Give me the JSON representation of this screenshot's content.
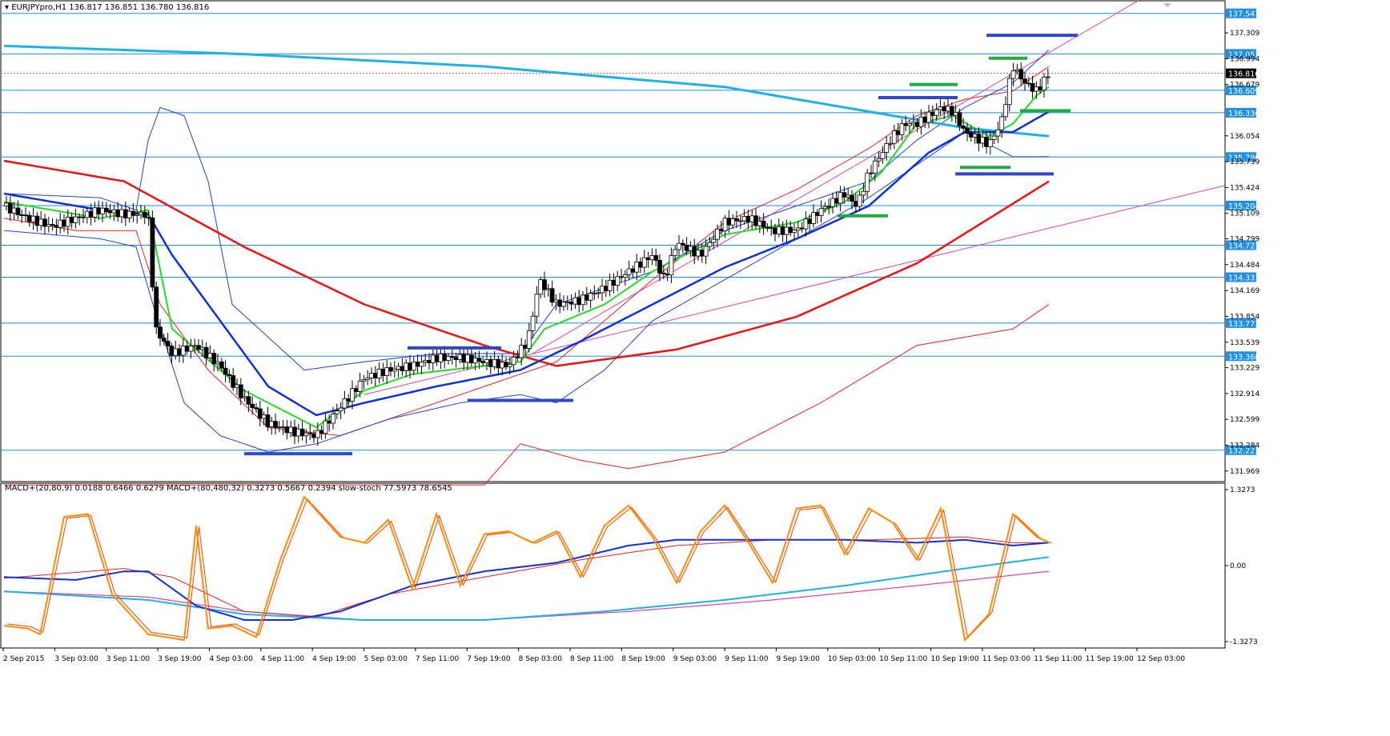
{
  "header": {
    "symbol_info": "EURJPYpro,H1  136.817 136.851 136.780 136.816",
    "indicator_info": "MACD+(20,80,9) 0.0188 0.6466 0.6279   MACD+(80,480,32) 0.3273 0.5667 0.2394   slow-stoch 77.5973 78.6545"
  },
  "chart_data": [
    {
      "type": "candlestick",
      "title": "EURJPYpro,H1",
      "ylim": [
        131.84,
        137.7
      ],
      "y_ticks": [
        "137.309",
        "136.994",
        "136.679",
        "136.054",
        "135.739",
        "135.424",
        "135.109",
        "134.799",
        "134.484",
        "134.169",
        "133.854",
        "133.539",
        "133.229",
        "132.914",
        "132.599",
        "132.284",
        "131.969"
      ],
      "y_tick_values": [
        137.309,
        136.994,
        136.679,
        136.054,
        135.739,
        135.424,
        135.109,
        134.799,
        134.484,
        134.169,
        133.854,
        133.539,
        133.229,
        132.914,
        132.599,
        132.284,
        131.969
      ],
      "price_levels": [
        137.547,
        137.053,
        136.609,
        136.336,
        135.796,
        135.204,
        134.721,
        134.331,
        133.772,
        133.368,
        132.223
      ],
      "current_price": "136.816",
      "current_price_value": 136.816,
      "close_path": [
        [
          0,
          135.2
        ],
        [
          10,
          135.05
        ],
        [
          20,
          134.95
        ],
        [
          30,
          135.05
        ],
        [
          40,
          135.15
        ],
        [
          50,
          135.1
        ],
        [
          60,
          135.1
        ],
        [
          63,
          133.7
        ],
        [
          70,
          133.4
        ],
        [
          80,
          133.5
        ],
        [
          90,
          133.25
        ],
        [
          100,
          132.85
        ],
        [
          110,
          132.55
        ],
        [
          120,
          132.45
        ],
        [
          130,
          132.4
        ],
        [
          140,
          132.75
        ],
        [
          150,
          133.1
        ],
        [
          160,
          133.2
        ],
        [
          170,
          133.25
        ],
        [
          180,
          133.35
        ],
        [
          190,
          133.35
        ],
        [
          200,
          133.3
        ],
        [
          210,
          133.25
        ],
        [
          218,
          133.55
        ],
        [
          223,
          134.3
        ],
        [
          230,
          134.0
        ],
        [
          240,
          134.05
        ],
        [
          250,
          134.2
        ],
        [
          260,
          134.4
        ],
        [
          270,
          134.6
        ],
        [
          275,
          134.3
        ],
        [
          280,
          134.75
        ],
        [
          290,
          134.6
        ],
        [
          300,
          135.0
        ],
        [
          310,
          135.05
        ],
        [
          320,
          134.9
        ],
        [
          330,
          134.9
        ],
        [
          340,
          135.15
        ],
        [
          350,
          135.35
        ],
        [
          355,
          135.2
        ],
        [
          360,
          135.6
        ],
        [
          370,
          136.05
        ],
        [
          375,
          136.2
        ],
        [
          380,
          136.2
        ],
        [
          390,
          136.4
        ],
        [
          395,
          136.35
        ],
        [
          400,
          136.1
        ],
        [
          410,
          135.95
        ],
        [
          415,
          136.2
        ],
        [
          420,
          136.9
        ],
        [
          425,
          136.7
        ],
        [
          430,
          136.6
        ],
        [
          435,
          136.816
        ]
      ],
      "ema_fast_green": [
        [
          0,
          135.25
        ],
        [
          40,
          135.05
        ],
        [
          60,
          135.15
        ],
        [
          70,
          133.7
        ],
        [
          80,
          133.45
        ],
        [
          100,
          132.95
        ],
        [
          130,
          132.5
        ],
        [
          150,
          132.95
        ],
        [
          170,
          133.15
        ],
        [
          200,
          133.25
        ],
        [
          215,
          133.3
        ],
        [
          225,
          133.7
        ],
        [
          250,
          134.0
        ],
        [
          270,
          134.4
        ],
        [
          300,
          134.85
        ],
        [
          330,
          135.0
        ],
        [
          350,
          135.25
        ],
        [
          365,
          135.6
        ],
        [
          380,
          136.2
        ],
        [
          395,
          136.3
        ],
        [
          410,
          136.05
        ],
        [
          420,
          136.2
        ],
        [
          430,
          136.55
        ],
        [
          435,
          136.65
        ]
      ],
      "ema_mid_blue": [
        [
          0,
          135.35
        ],
        [
          40,
          135.15
        ],
        [
          60,
          135.1
        ],
        [
          70,
          134.6
        ],
        [
          90,
          133.8
        ],
        [
          110,
          133.0
        ],
        [
          130,
          132.65
        ],
        [
          150,
          132.8
        ],
        [
          180,
          133.0
        ],
        [
          215,
          133.2
        ],
        [
          240,
          133.55
        ],
        [
          270,
          134.0
        ],
        [
          300,
          134.45
        ],
        [
          330,
          134.8
        ],
        [
          360,
          135.2
        ],
        [
          385,
          135.85
        ],
        [
          400,
          136.1
        ],
        [
          420,
          136.1
        ],
        [
          435,
          136.35
        ]
      ],
      "ma_slow_cyan": [
        [
          0,
          137.15
        ],
        [
          100,
          137.05
        ],
        [
          200,
          136.9
        ],
        [
          300,
          136.65
        ],
        [
          360,
          136.35
        ],
        [
          400,
          136.15
        ],
        [
          435,
          136.05
        ]
      ],
      "ma_slow_red": [
        [
          0,
          135.75
        ],
        [
          50,
          135.5
        ],
        [
          100,
          134.7
        ],
        [
          150,
          134.0
        ],
        [
          200,
          133.5
        ],
        [
          230,
          133.25
        ],
        [
          280,
          133.45
        ],
        [
          330,
          133.85
        ],
        [
          380,
          134.5
        ],
        [
          435,
          135.5
        ]
      ],
      "bollinger_upper": [
        [
          0,
          135.35
        ],
        [
          40,
          135.3
        ],
        [
          55,
          135.15
        ],
        [
          60,
          136.0
        ],
        [
          65,
          136.4
        ],
        [
          75,
          136.3
        ],
        [
          85,
          135.5
        ],
        [
          95,
          134.0
        ],
        [
          110,
          133.6
        ],
        [
          125,
          133.2
        ],
        [
          150,
          133.3
        ],
        [
          180,
          133.4
        ],
        [
          215,
          133.4
        ],
        [
          230,
          134.0
        ],
        [
          270,
          134.4
        ],
        [
          300,
          134.9
        ],
        [
          330,
          135.2
        ],
        [
          360,
          135.5
        ],
        [
          380,
          136.0
        ],
        [
          400,
          136.4
        ],
        [
          420,
          136.7
        ],
        [
          435,
          137.1
        ]
      ],
      "bollinger_lower": [
        [
          0,
          134.9
        ],
        [
          40,
          134.8
        ],
        [
          55,
          134.7
        ],
        [
          62,
          134.0
        ],
        [
          75,
          132.8
        ],
        [
          90,
          132.4
        ],
        [
          110,
          132.2
        ],
        [
          130,
          132.3
        ],
        [
          160,
          132.6
        ],
        [
          190,
          132.8
        ],
        [
          215,
          132.9
        ],
        [
          230,
          132.8
        ],
        [
          250,
          133.2
        ],
        [
          270,
          133.8
        ],
        [
          300,
          134.3
        ],
        [
          330,
          134.8
        ],
        [
          360,
          135.3
        ],
        [
          380,
          135.7
        ],
        [
          400,
          136.1
        ],
        [
          420,
          135.8
        ],
        [
          435,
          135.8
        ]
      ],
      "envelope_upper_red": [
        [
          0,
          135.05
        ],
        [
          30,
          134.9
        ],
        [
          55,
          134.9
        ],
        [
          65,
          134.0
        ],
        [
          85,
          133.2
        ],
        [
          110,
          132.5
        ],
        [
          140,
          132.4
        ],
        [
          160,
          132.6
        ],
        [
          200,
          133.0
        ],
        [
          230,
          133.3
        ],
        [
          270,
          134.3
        ],
        [
          300,
          135.0
        ],
        [
          330,
          135.4
        ],
        [
          360,
          135.9
        ],
        [
          380,
          136.3
        ],
        [
          400,
          136.5
        ],
        [
          420,
          136.6
        ],
        [
          435,
          136.9
        ]
      ],
      "envelope_lower_red": [
        [
          0,
          131.8
        ],
        [
          100,
          131.8
        ],
        [
          200,
          131.8
        ],
        [
          215,
          132.3
        ],
        [
          240,
          132.1
        ],
        [
          260,
          132.0
        ],
        [
          300,
          132.2
        ],
        [
          340,
          132.8
        ],
        [
          380,
          133.5
        ],
        [
          420,
          133.7
        ],
        [
          435,
          134.0
        ]
      ]
    },
    {
      "type": "line",
      "title": "MACD+ / slow-stoch",
      "ylim": [
        -1.3273,
        1.3273
      ],
      "y_ticks": [
        "1.3273",
        "0.00",
        "-1.3273"
      ],
      "y_tick_values": [
        1.3273,
        0.0,
        -1.3273
      ],
      "x_tick_labels": [
        "2 Sep 2015",
        "3 Sep 03:00",
        "3 Sep 11:00",
        "3 Sep 19:00",
        "4 Sep 03:00",
        "4 Sep 11:00",
        "4 Sep 19:00",
        "5 Sep 03:00",
        "7 Sep 11:00",
        "7 Sep 19:00",
        "8 Sep 03:00",
        "8 Sep 11:00",
        "8 Sep 19:00",
        "9 Sep 03:00",
        "9 Sep 11:00",
        "9 Sep 19:00",
        "10 Sep 03:00",
        "10 Sep 11:00",
        "10 Sep 19:00",
        "11 Sep 03:00",
        "11 Sep 11:00",
        "11 Sep 19:00",
        "12 Sep 03:00"
      ],
      "stoch": [
        [
          0,
          -1.05
        ],
        [
          10,
          -1.1
        ],
        [
          15,
          -1.2
        ],
        [
          25,
          0.85
        ],
        [
          35,
          0.9
        ],
        [
          45,
          -0.5
        ],
        [
          60,
          -1.2
        ],
        [
          75,
          -1.3
        ],
        [
          80,
          0.7
        ],
        [
          85,
          -1.1
        ],
        [
          95,
          -1.05
        ],
        [
          105,
          -1.25
        ],
        [
          115,
          0.1
        ],
        [
          125,
          1.2
        ],
        [
          140,
          0.5
        ],
        [
          150,
          0.4
        ],
        [
          160,
          0.8
        ],
        [
          170,
          -0.4
        ],
        [
          180,
          0.9
        ],
        [
          190,
          -0.35
        ],
        [
          200,
          0.55
        ],
        [
          210,
          0.6
        ],
        [
          220,
          0.4
        ],
        [
          230,
          0.6
        ],
        [
          240,
          -0.2
        ],
        [
          250,
          0.7
        ],
        [
          260,
          1.05
        ],
        [
          270,
          0.5
        ],
        [
          280,
          -0.3
        ],
        [
          290,
          0.6
        ],
        [
          300,
          1.05
        ],
        [
          310,
          0.4
        ],
        [
          320,
          -0.3
        ],
        [
          330,
          1.0
        ],
        [
          340,
          1.05
        ],
        [
          350,
          0.2
        ],
        [
          360,
          1.0
        ],
        [
          370,
          0.75
        ],
        [
          380,
          0.1
        ],
        [
          390,
          1.0
        ],
        [
          400,
          -1.3
        ],
        [
          410,
          -0.85
        ],
        [
          420,
          0.9
        ],
        [
          430,
          0.5
        ],
        [
          435,
          0.4
        ]
      ],
      "macd_fast_blue": [
        [
          0,
          -0.2
        ],
        [
          30,
          -0.25
        ],
        [
          50,
          -0.1
        ],
        [
          60,
          -0.1
        ],
        [
          80,
          -0.7
        ],
        [
          100,
          -0.95
        ],
        [
          120,
          -0.95
        ],
        [
          140,
          -0.8
        ],
        [
          170,
          -0.35
        ],
        [
          200,
          -0.1
        ],
        [
          230,
          0.05
        ],
        [
          260,
          0.35
        ],
        [
          280,
          0.45
        ],
        [
          300,
          0.45
        ],
        [
          320,
          0.45
        ],
        [
          350,
          0.45
        ],
        [
          380,
          0.4
        ],
        [
          400,
          0.45
        ],
        [
          420,
          0.35
        ],
        [
          435,
          0.4
        ]
      ],
      "macd_fast_signal_red": [
        [
          0,
          -0.22
        ],
        [
          50,
          -0.05
        ],
        [
          70,
          -0.2
        ],
        [
          100,
          -0.8
        ],
        [
          130,
          -0.9
        ],
        [
          160,
          -0.5
        ],
        [
          200,
          -0.2
        ],
        [
          240,
          0.1
        ],
        [
          280,
          0.35
        ],
        [
          320,
          0.45
        ],
        [
          360,
          0.45
        ],
        [
          400,
          0.5
        ],
        [
          420,
          0.4
        ],
        [
          435,
          0.4
        ]
      ],
      "macd_slow_cyan": [
        [
          0,
          -0.45
        ],
        [
          60,
          -0.6
        ],
        [
          100,
          -0.85
        ],
        [
          150,
          -0.95
        ],
        [
          200,
          -0.95
        ],
        [
          250,
          -0.8
        ],
        [
          300,
          -0.6
        ],
        [
          350,
          -0.35
        ],
        [
          400,
          -0.05
        ],
        [
          435,
          0.15
        ]
      ],
      "macd_slow_signal_magenta": [
        [
          0,
          -0.45
        ],
        [
          60,
          -0.55
        ],
        [
          100,
          -0.8
        ],
        [
          150,
          -0.95
        ],
        [
          200,
          -0.95
        ],
        [
          260,
          -0.8
        ],
        [
          320,
          -0.6
        ],
        [
          380,
          -0.35
        ],
        [
          435,
          -0.1
        ]
      ]
    }
  ],
  "colors": {
    "level_line": "#1f8fe8",
    "level_label_bg": "#1f8fe8",
    "current_label_bg": "#000000",
    "candle_bull": "#ffffff",
    "candle_bear": "#000000",
    "ema_green": "#22dd22",
    "ema_blue": "#1030d8",
    "ma_cyan": "#1fb0e8",
    "ma_red": "#ee1111",
    "bb_blue": "#2040e0",
    "envelope_red": "#ee2020",
    "trend_magenta": "#e8409c",
    "stoch_orange": "#ff8c00",
    "zone_blue": "#3048c8",
    "zone_green": "#22aa44"
  }
}
